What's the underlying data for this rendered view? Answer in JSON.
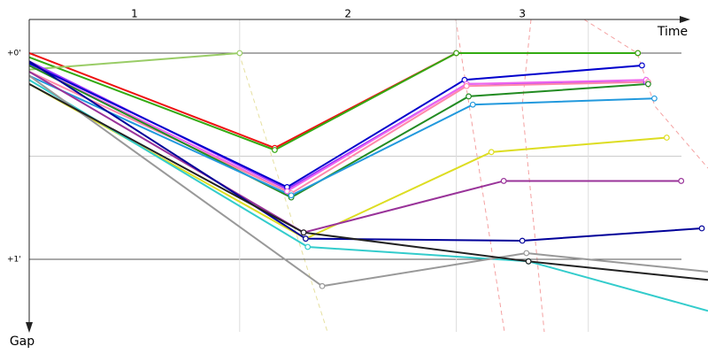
{
  "chart_data": {
    "type": "line",
    "x_label": "Time",
    "y_label": "Gap",
    "xlim": [
      0,
      3.29
    ],
    "ylim": [
      -0.163,
      1.352
    ],
    "yticks": [
      {
        "value": 0,
        "label": "+0'"
      },
      {
        "value": 1,
        "label": "+1'"
      }
    ],
    "minor_yticks": [
      0.5
    ],
    "lap_lines": [
      1.02,
      2.07,
      2.71
    ],
    "laps": [
      "1",
      "2",
      "3"
    ],
    "series": [
      {
        "color": "#ee1111",
        "x": [
          0,
          1.19,
          2.07,
          2.95
        ],
        "values": [
          0,
          0.46,
          0,
          0.0
        ]
      },
      {
        "color": "#33aa11",
        "x": [
          0,
          1.19,
          2.07,
          2.95
        ],
        "values": [
          0.02,
          0.47,
          0,
          0.0
        ]
      },
      {
        "color": "#99cc66",
        "x": [
          0,
          1.02
        ],
        "values": [
          0.08,
          0
        ]
      },
      {
        "color": "#9933ff",
        "x": [
          0,
          1.25,
          2.12,
          2.99
        ],
        "values": [
          0.04,
          0.66,
          0.15,
          0.14
        ]
      },
      {
        "color": "#0000cc",
        "x": [
          0,
          1.25,
          2.11,
          2.97
        ],
        "values": [
          0.05,
          0.65,
          0.13,
          0.06
        ]
      },
      {
        "color": "#ee66ee",
        "x": [
          0,
          1.25,
          2.12,
          2.99
        ],
        "values": [
          0.06,
          0.67,
          0.15,
          0.13
        ]
      },
      {
        "color": "#ff88aa",
        "x": [
          0,
          1.27,
          2.12,
          3.0
        ],
        "values": [
          0.09,
          0.68,
          0.16,
          0.14
        ]
      },
      {
        "color": "#228b22",
        "x": [
          0,
          1.27,
          2.13,
          3.0
        ],
        "values": [
          0.06,
          0.7,
          0.21,
          0.15
        ]
      },
      {
        "color": "#2299dd",
        "x": [
          0,
          1.27,
          2.15,
          3.03
        ],
        "values": [
          0.11,
          0.69,
          0.25,
          0.22
        ]
      },
      {
        "color": "#dddd22",
        "x": [
          0,
          1.34,
          2.24,
          3.09
        ],
        "values": [
          0.15,
          0.9,
          0.48,
          0.41
        ]
      },
      {
        "color": "#993399",
        "x": [
          0,
          1.33,
          2.3,
          3.16
        ],
        "values": [
          0.09,
          0.87,
          0.62,
          0.62
        ]
      },
      {
        "color": "#000099",
        "x": [
          0,
          1.34,
          2.39,
          3.26
        ],
        "values": [
          0.04,
          0.9,
          0.91,
          0.85
        ]
      },
      {
        "color": "#33cccc",
        "x": [
          0,
          1.35,
          2.42,
          3.29
        ],
        "values": [
          0.13,
          0.94,
          1.01,
          1.25
        ]
      },
      {
        "color": "#999999",
        "x": [
          0,
          1.42,
          2.41,
          3.29
        ],
        "values": [
          0.11,
          1.13,
          0.97,
          1.06
        ]
      },
      {
        "color": "#222222",
        "x": [
          0,
          1.33,
          2.42,
          3.29
        ],
        "values": [
          0.15,
          0.87,
          1.01,
          1.1
        ]
      }
    ]
  }
}
